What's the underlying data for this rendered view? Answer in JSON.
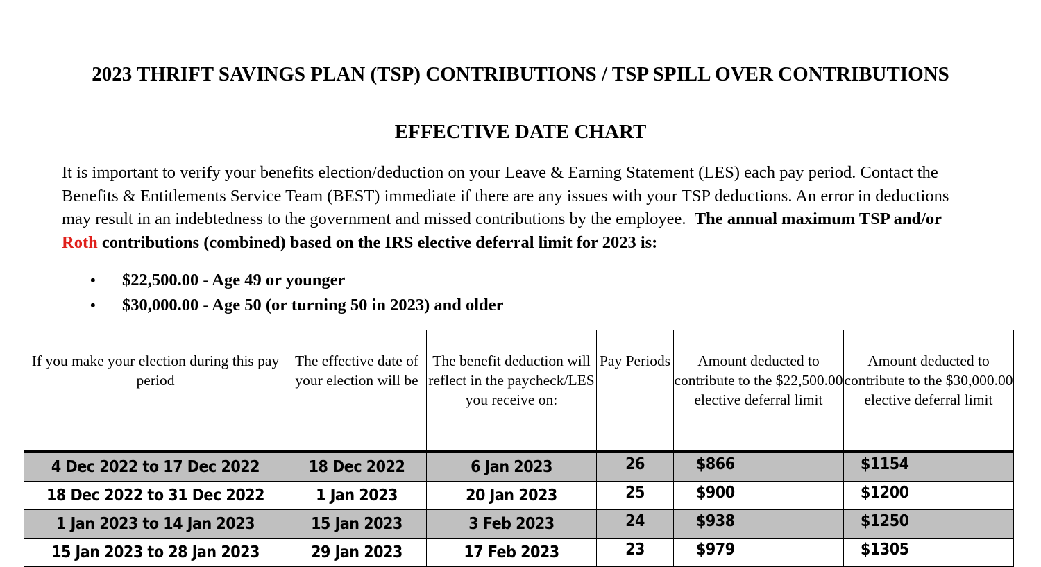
{
  "title_line1": "2023 THRIFT SAVINGS PLAN (TSP) CONTRIBUTIONS / TSP SPILL OVER CONTRIBUTIONS",
  "title_line2": "EFFECTIVE DATE CHART",
  "intro": {
    "text": "It is important to verify your benefits election/deduction on your Leave & Earning Statement (LES) each pay period. Contact the Benefits & Entitlements Service Team (BEST) immediate if there are any issues with your TSP deductions. An error in deductions may result in an indebtedness to the government and missed contributions by the employee.",
    "bold_before": "The annual maximum TSP and/or",
    "bold_red": "Roth",
    "bold_after": "contributions (combined) based on the IRS elective deferral limit for 2023 is:",
    "red_color": "#e0201b"
  },
  "limits": [
    "$22,500.00 - Age 49 or younger",
    "$30,000.00 - Age 50 (or turning 50 in 2023) and older"
  ],
  "table": {
    "headers": [
      "If you make your election during this pay period",
      "The effective date of your election will be",
      "The benefit deduction will reflect in the paycheck/LES you receive on:",
      "Pay Periods",
      "Amount deducted to contribute to the $22,500.00 elective deferral limit",
      "Amount deducted to contribute to the $30,000.00 elective deferral limit"
    ],
    "shade_color": "#c0c0c0",
    "rows": [
      [
        "4 Dec 2022 to 17 Dec 2022",
        "18 Dec 2022",
        "6 Jan 2023",
        "26",
        "$866",
        "$1154"
      ],
      [
        "18 Dec 2022 to 31 Dec 2022",
        "1 Jan 2023",
        "20 Jan 2023",
        "25",
        "$900",
        "$1200"
      ],
      [
        "1 Jan 2023 to 14 Jan 2023",
        "15 Jan 2023",
        "3 Feb 2023",
        "24",
        "$938",
        "$1250"
      ],
      [
        "15 Jan 2023 to 28 Jan 2023",
        "29 Jan 2023",
        "17 Feb 2023",
        "23",
        "$979",
        "$1305"
      ]
    ]
  }
}
